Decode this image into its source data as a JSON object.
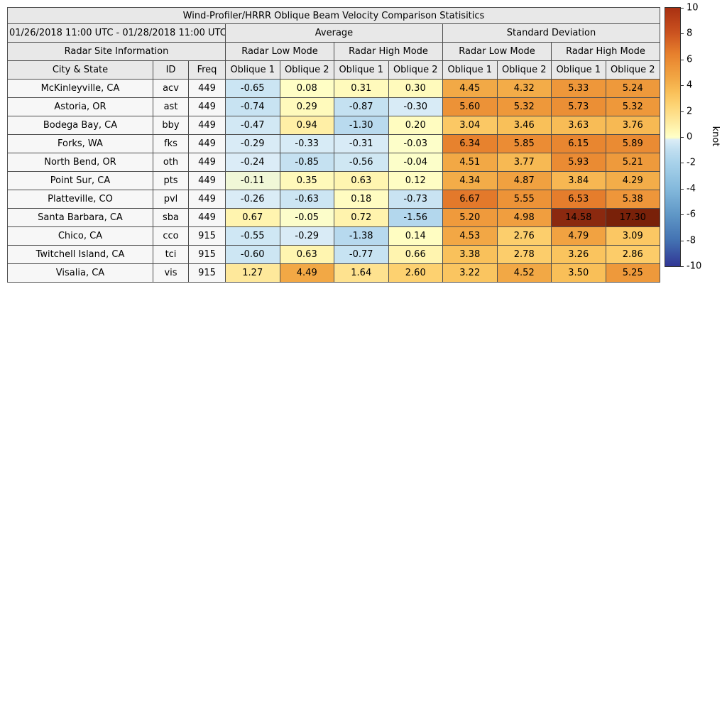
{
  "title": "Wind-Profiler/HRRR Oblique Beam Velocity Comparison Statisitics",
  "period": "01/26/2018 11:00 UTC - 01/28/2018 11:00 UTC",
  "groups": {
    "average": "Average",
    "std": "Standard Deviation",
    "site_info": "Radar Site Information",
    "low_mode": "Radar Low Mode",
    "high_mode": "Radar High Mode"
  },
  "columns": {
    "city": "City & State",
    "id": "ID",
    "freq": "Freq",
    "oblique1": "Oblique 1",
    "oblique2": "Oblique 2"
  },
  "chart_data": {
    "type": "heatmap",
    "title": "Wind-Profiler/HRRR Oblique Beam Velocity Comparison Statisitics",
    "period": "01/26/2018 11:00 UTC - 01/28/2018 11:00 UTC",
    "value_columns": [
      "Average Radar Low Mode Oblique 1",
      "Average Radar Low Mode Oblique 2",
      "Average Radar High Mode Oblique 1",
      "Average Radar High Mode Oblique 2",
      "Standard Deviation Radar Low Mode Oblique 1",
      "Standard Deviation Radar Low Mode Oblique 2",
      "Standard Deviation Radar High Mode Oblique 1",
      "Standard Deviation Radar High Mode Oblique 2"
    ],
    "rows": [
      {
        "city": "McKinleyville, CA",
        "id": "acv",
        "freq": 449,
        "values": [
          -0.65,
          0.08,
          0.31,
          0.3,
          4.45,
          4.32,
          5.33,
          5.24
        ]
      },
      {
        "city": "Astoria, OR",
        "id": "ast",
        "freq": 449,
        "values": [
          -0.74,
          0.29,
          -0.87,
          -0.3,
          5.6,
          5.32,
          5.73,
          5.32
        ]
      },
      {
        "city": "Bodega Bay, CA",
        "id": "bby",
        "freq": 449,
        "values": [
          -0.47,
          0.94,
          -1.3,
          0.2,
          3.04,
          3.46,
          3.63,
          3.76
        ]
      },
      {
        "city": "Forks, WA",
        "id": "fks",
        "freq": 449,
        "values": [
          -0.29,
          -0.33,
          -0.31,
          -0.03,
          6.34,
          5.85,
          6.15,
          5.89
        ]
      },
      {
        "city": "North Bend, OR",
        "id": "oth",
        "freq": 449,
        "values": [
          -0.24,
          -0.85,
          -0.56,
          -0.04,
          4.51,
          3.77,
          5.93,
          5.21
        ]
      },
      {
        "city": "Point Sur, CA",
        "id": "pts",
        "freq": 449,
        "values": [
          -0.11,
          0.35,
          0.63,
          0.12,
          4.34,
          4.87,
          3.84,
          4.29
        ]
      },
      {
        "city": "Platteville, CO",
        "id": "pvl",
        "freq": 449,
        "values": [
          -0.26,
          -0.63,
          0.18,
          -0.73,
          6.67,
          5.55,
          6.53,
          5.38
        ]
      },
      {
        "city": "Santa Barbara, CA",
        "id": "sba",
        "freq": 449,
        "values": [
          0.67,
          -0.05,
          0.72,
          -1.56,
          5.2,
          4.98,
          14.58,
          17.3
        ]
      },
      {
        "city": "Chico, CA",
        "id": "cco",
        "freq": 915,
        "values": [
          -0.55,
          -0.29,
          -1.38,
          0.14,
          4.53,
          2.76,
          4.79,
          3.09
        ]
      },
      {
        "city": "Twitchell Island, CA",
        "id": "tci",
        "freq": 915,
        "values": [
          -0.6,
          0.63,
          -0.77,
          0.66,
          3.38,
          2.78,
          3.26,
          2.86
        ]
      },
      {
        "city": "Visalia, CA",
        "id": "vis",
        "freq": 915,
        "values": [
          1.27,
          4.49,
          1.64,
          2.6,
          3.22,
          4.52,
          3.5,
          5.25
        ]
      }
    ],
    "colorbar": {
      "label": "knot",
      "min": -10,
      "max": 10,
      "ticks": [
        10,
        8,
        6,
        4,
        2,
        0,
        -2,
        -4,
        -6,
        -8,
        -10
      ]
    },
    "colormap": [
      [
        -10,
        "#313695"
      ],
      [
        -8,
        "#4372b2"
      ],
      [
        -6,
        "#5f97c6"
      ],
      [
        -4,
        "#84b9dc"
      ],
      [
        -2,
        "#a8d2ea"
      ],
      [
        -1,
        "#c0def0"
      ],
      [
        -0.6,
        "#cde6f3"
      ],
      [
        -0.2,
        "#dcedf7"
      ],
      [
        -0.12,
        "#eef6da"
      ],
      [
        -0.06,
        "#fbfdca"
      ],
      [
        0,
        "#ffffc8"
      ],
      [
        0.5,
        "#fff7b4"
      ],
      [
        1.5,
        "#fee494"
      ],
      [
        2.5,
        "#fdd373"
      ],
      [
        3.5,
        "#f9bf58"
      ],
      [
        4.5,
        "#f2a845"
      ],
      [
        5.5,
        "#ed9438"
      ],
      [
        6.5,
        "#e67e2c"
      ],
      [
        8,
        "#cc5420"
      ],
      [
        10,
        "#a93012"
      ],
      [
        14,
        "#8f2b10"
      ],
      [
        18,
        "#741f08"
      ]
    ]
  }
}
